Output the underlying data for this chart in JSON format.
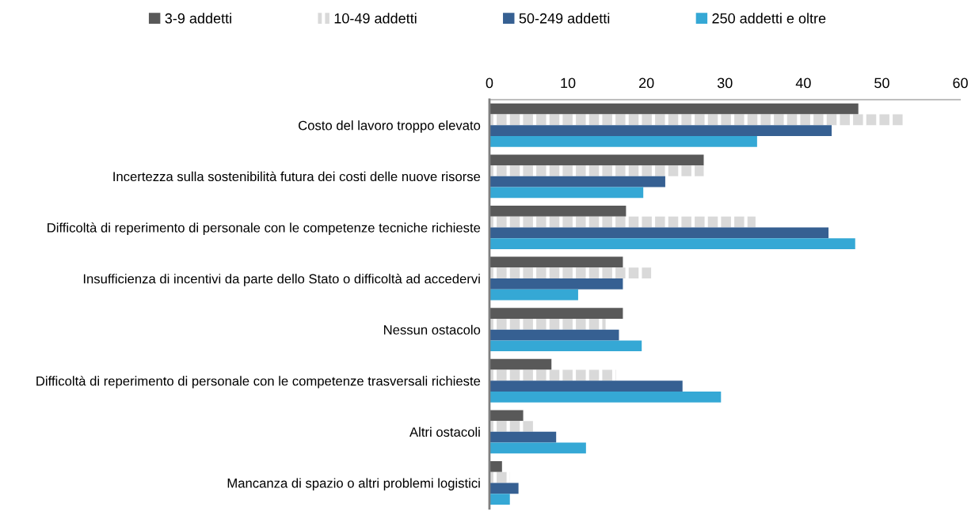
{
  "chart_data": {
    "type": "bar",
    "orientation": "horizontal",
    "categories": [
      "Costo del lavoro troppo elevato",
      "Incertezza sulla sostenibilità futura dei costi delle nuove risorse",
      "Difficoltà di reperimento di personale con le competenze tecniche richieste",
      "Insufficienza di incentivi da parte dello Stato o difficoltà ad accedervi",
      "Nessun ostacolo",
      "Difficoltà di reperimento di personale con le competenze trasversali richieste",
      "Altri ostacoli",
      "Mancanza di spazio o altri problemi logistici"
    ],
    "series": [
      {
        "name": "3-9 addetti",
        "color": "#595959",
        "values": [
          47.0,
          27.3,
          17.4,
          17.0,
          17.0,
          7.9,
          4.3,
          1.6
        ]
      },
      {
        "name": "10-49 addetti",
        "color": "#d9d9d9",
        "values": [
          52.8,
          27.3,
          33.9,
          20.6,
          14.8,
          16.1,
          5.7,
          2.6
        ]
      },
      {
        "name": "50-249 addetti",
        "color": "#366092",
        "values": [
          43.6,
          22.4,
          43.2,
          17.0,
          16.5,
          24.6,
          8.5,
          3.7
        ]
      },
      {
        "name": "250 addetti e oltre",
        "color": "#35a8d5",
        "values": [
          34.1,
          19.6,
          46.6,
          11.3,
          19.4,
          29.5,
          12.3,
          2.6
        ]
      }
    ],
    "xlim": [
      0,
      60
    ],
    "xticks": [
      0,
      10,
      20,
      30,
      40,
      50,
      60
    ],
    "grid": false,
    "legend": "top"
  }
}
